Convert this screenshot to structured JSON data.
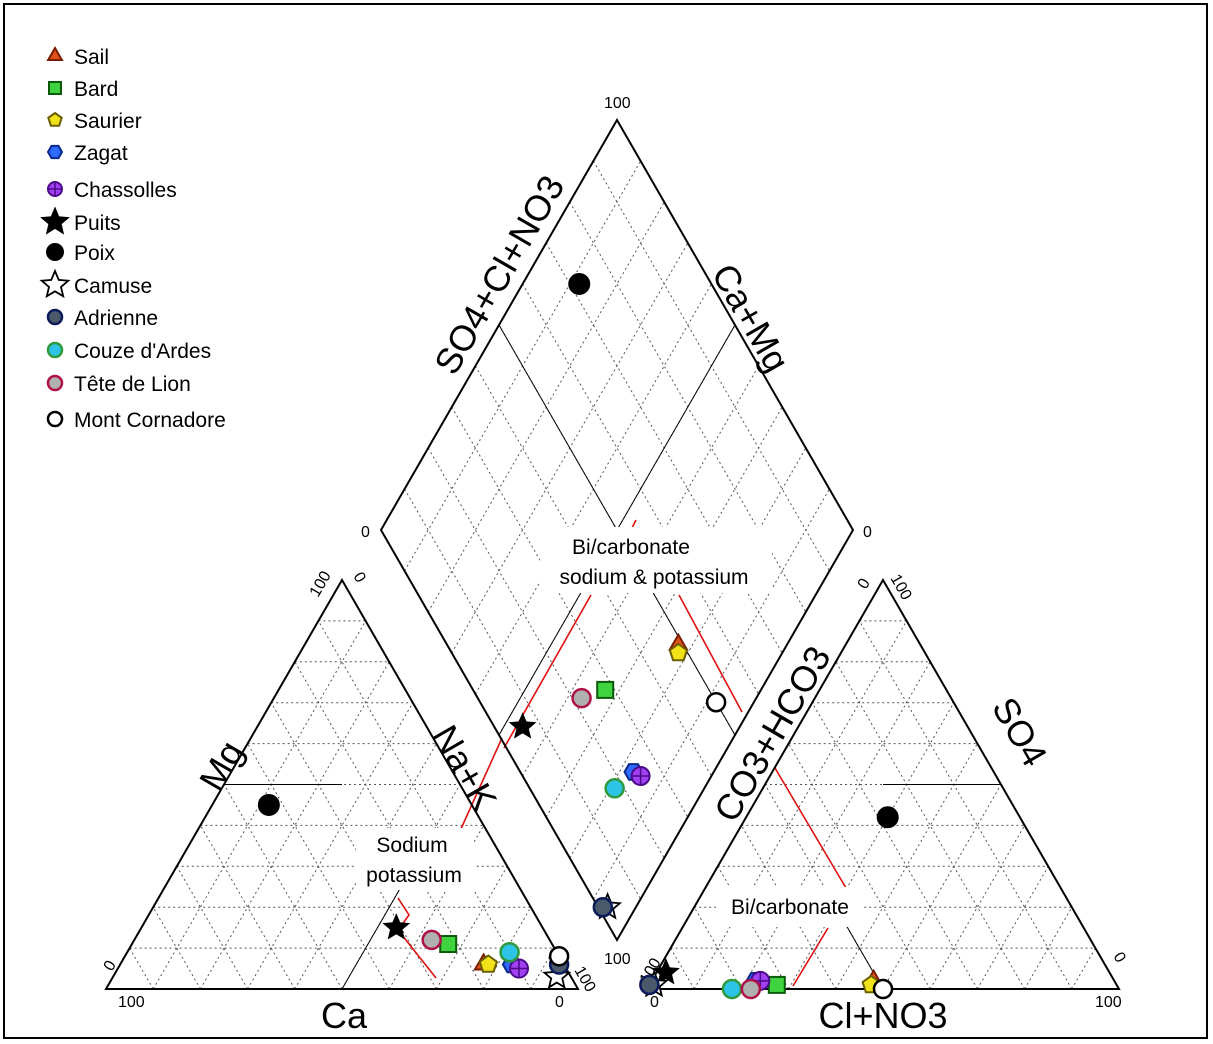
{
  "chart_data": {
    "type": "scatter",
    "subtype": "piper-diagram",
    "legend_position": "top-left",
    "grid": true,
    "axis_labels": {
      "cation_left": "Mg",
      "cation_right": "Na+K",
      "cation_bottom": "Ca",
      "anion_left": "CO3+HCO3",
      "anion_right": "SO4",
      "anion_bottom": "Cl+NO3",
      "diamond_left": "SO4+Cl+NO3",
      "diamond_right": "Ca+Mg"
    },
    "tick_labels": {
      "cation_bottom_left": "100",
      "cation_bottom_right": "0",
      "cation_top": "100",
      "cation_left_zero": "0",
      "cation_right_hundred": "100",
      "cation_top_zero": "0",
      "anion_bottom_left": "0",
      "anion_bottom_right": "100",
      "anion_top": "100",
      "anion_left_hundred": "100",
      "anion_right_zero": "0",
      "anion_top_zero": "0",
      "diamond_top": "100",
      "diamond_left": "0",
      "diamond_right": "0",
      "diamond_bottom": "100"
    },
    "region_labels": {
      "diamond_line1": "Bi/carbonate",
      "diamond_line2": "sodium & potassium",
      "cation_line1": "Sodium",
      "cation_line2": "potassium",
      "anion": "Bi/carbonate"
    },
    "series": [
      {
        "name": "Sail",
        "symbol": "triangle",
        "fill": "#e0521c",
        "stroke": "#7a1c00",
        "cation": {
          "ca": 17,
          "mg": 6,
          "nak": 77
        },
        "anion": {
          "hco3": 51,
          "so4": 2,
          "cl": 47
        }
      },
      {
        "name": "Bard",
        "symbol": "square",
        "fill": "#3fd43f",
        "stroke": "#0a5a0a",
        "cation": {
          "ca": 22,
          "mg": 11,
          "nak": 67
        },
        "anion": {
          "hco3": 72,
          "so4": 1,
          "cl": 27
        }
      },
      {
        "name": "Saurier",
        "symbol": "pentagon",
        "fill": "#f2e21a",
        "stroke": "#6a5e00",
        "cation": {
          "ca": 16,
          "mg": 6,
          "nak": 78
        },
        "anion": {
          "hco3": 52,
          "so4": 1,
          "cl": 47
        }
      },
      {
        "name": "Zagat",
        "symbol": "hexagon",
        "fill": "#2f6bff",
        "stroke": "#0a2a8a",
        "cation": {
          "ca": 11,
          "mg": 6,
          "nak": 83
        },
        "anion": {
          "hco3": 76,
          "so4": 2,
          "cl": 22
        }
      },
      {
        "name": "Chassolles",
        "symbol": "circle-cross",
        "fill": "#a040f0",
        "stroke": "#4a0a8a",
        "cation": {
          "ca": 10,
          "mg": 5,
          "nak": 85
        },
        "anion": {
          "hco3": 75,
          "so4": 2,
          "cl": 23
        }
      },
      {
        "name": "Puits",
        "symbol": "star",
        "fill": "#000000",
        "stroke": "#000000",
        "cation": {
          "ca": 31,
          "mg": 15,
          "nak": 54
        },
        "anion": {
          "hco3": 94,
          "so4": 4,
          "cl": 2
        }
      },
      {
        "name": "Poix",
        "symbol": "filled-circle",
        "fill": "#000000",
        "stroke": "#000000",
        "cation": {
          "ca": 43,
          "mg": 45,
          "nak": 12
        },
        "anion": {
          "hco3": 28,
          "so4": 42,
          "cl": 30
        }
      },
      {
        "name": "Camuse",
        "symbol": "open-star",
        "fill": "#ffffff",
        "stroke": "#000000",
        "cation": {
          "ca": 3,
          "mg": 3,
          "nak": 94
        },
        "anion": {
          "hco3": 98,
          "so4": 1,
          "cl": 1
        }
      },
      {
        "name": "Adrienne",
        "symbol": "circle",
        "fill": "#4a5a6a",
        "stroke": "#0a1a5a",
        "cation": {
          "ca": 1,
          "mg": 6,
          "nak": 93
        },
        "anion": {
          "hco3": 99,
          "so4": 1,
          "cl": 0
        }
      },
      {
        "name": "Couze d'Ardes",
        "symbol": "circle",
        "fill": "#2ec4e8",
        "stroke": "#2e9a3e",
        "cation": {
          "ca": 10,
          "mg": 9,
          "nak": 81
        },
        "anion": {
          "hco3": 82,
          "so4": 0,
          "cl": 18
        }
      },
      {
        "name": "Tête de Lion",
        "symbol": "circle",
        "fill": "#b0b0b0",
        "stroke": "#b0104a",
        "cation": {
          "ca": 25,
          "mg": 12,
          "nak": 63
        },
        "anion": {
          "hco3": 78,
          "so4": 0,
          "cl": 22
        }
      },
      {
        "name": "Mont Cornadore",
        "symbol": "open-circle",
        "fill": "#ffffff",
        "stroke": "#000000",
        "cation": {
          "ca": 0,
          "mg": 8,
          "nak": 92
        },
        "anion": {
          "hco3": 50,
          "so4": 0,
          "cl": 50
        }
      }
    ]
  }
}
